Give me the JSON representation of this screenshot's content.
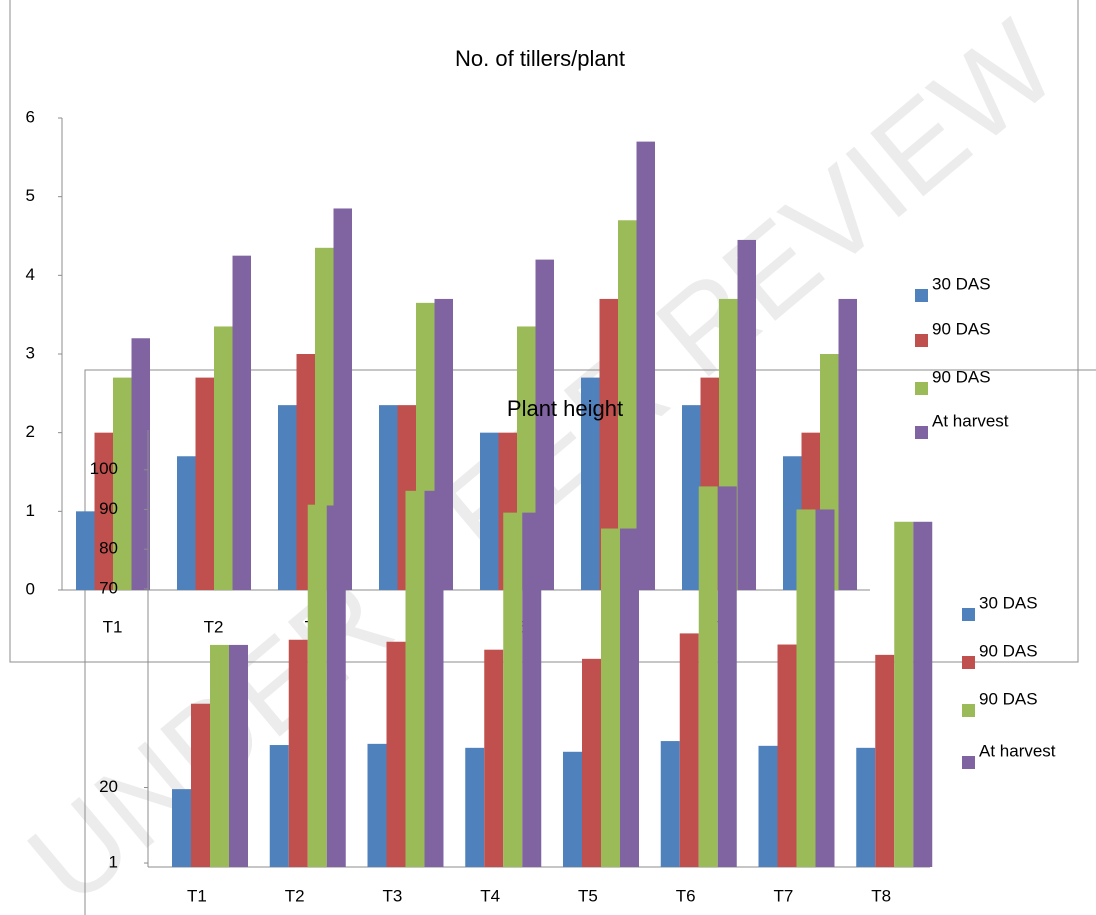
{
  "watermark": "UNDER PEER REVIEW",
  "chart_data": [
    {
      "type": "bar",
      "title": "No. of tillers/plant",
      "categories": [
        "T1",
        "T2",
        "T3",
        "T4",
        "T5",
        "T6",
        "T7",
        "T8"
      ],
      "series": [
        {
          "name": "30 DAS",
          "color": "#4f81bd",
          "values": [
            1.0,
            1.7,
            2.35,
            2.35,
            2.0,
            2.7,
            2.35,
            1.7
          ]
        },
        {
          "name": "90 DAS",
          "color": "#c0504d",
          "values": [
            2.0,
            2.7,
            3.0,
            2.35,
            2.0,
            3.7,
            2.7,
            2.0
          ]
        },
        {
          "name": "90 DAS",
          "color": "#9bbb59",
          "values": [
            2.7,
            3.35,
            4.35,
            3.65,
            3.35,
            4.7,
            3.7,
            3.0
          ]
        },
        {
          "name": "At harvest",
          "color": "#8064a2",
          "values": [
            3.2,
            4.25,
            4.85,
            3.7,
            4.2,
            5.7,
            4.45,
            3.7
          ]
        }
      ],
      "ylim": [
        0,
        6
      ],
      "yticks": [
        0,
        1,
        2,
        3,
        4,
        5,
        6
      ],
      "grid": false
    },
    {
      "type": "bar",
      "title": "Plant height",
      "categories": [
        "T1",
        "T2",
        "T3",
        "T4",
        "T5",
        "T6",
        "T7",
        "T8"
      ],
      "series": [
        {
          "name": "30 DAS",
          "color": "#4f81bd",
          "values": [
            19.6,
            30.7,
            31.0,
            30.0,
            29.0,
            31.7,
            30.5,
            30.0
          ]
        },
        {
          "name": "90 DAS",
          "color": "#c0504d",
          "values": [
            41.1,
            57.2,
            56.7,
            54.7,
            52.4,
            58.8,
            56.0,
            53.4
          ]
        },
        {
          "name": "90 DAS",
          "color": "#9bbb59",
          "values": [
            55.9,
            91.2,
            94.7,
            89.2,
            85.2,
            95.8,
            90.0,
            86.9
          ]
        },
        {
          "name": "At harvest",
          "color": "#8064a2",
          "values": [
            55.9,
            91.0,
            94.7,
            89.2,
            85.2,
            95.8,
            90.0,
            86.9
          ]
        }
      ],
      "ylim": [
        0,
        110
      ],
      "yticks": [
        1,
        20,
        70,
        80,
        90,
        100
      ],
      "grid": false
    }
  ]
}
